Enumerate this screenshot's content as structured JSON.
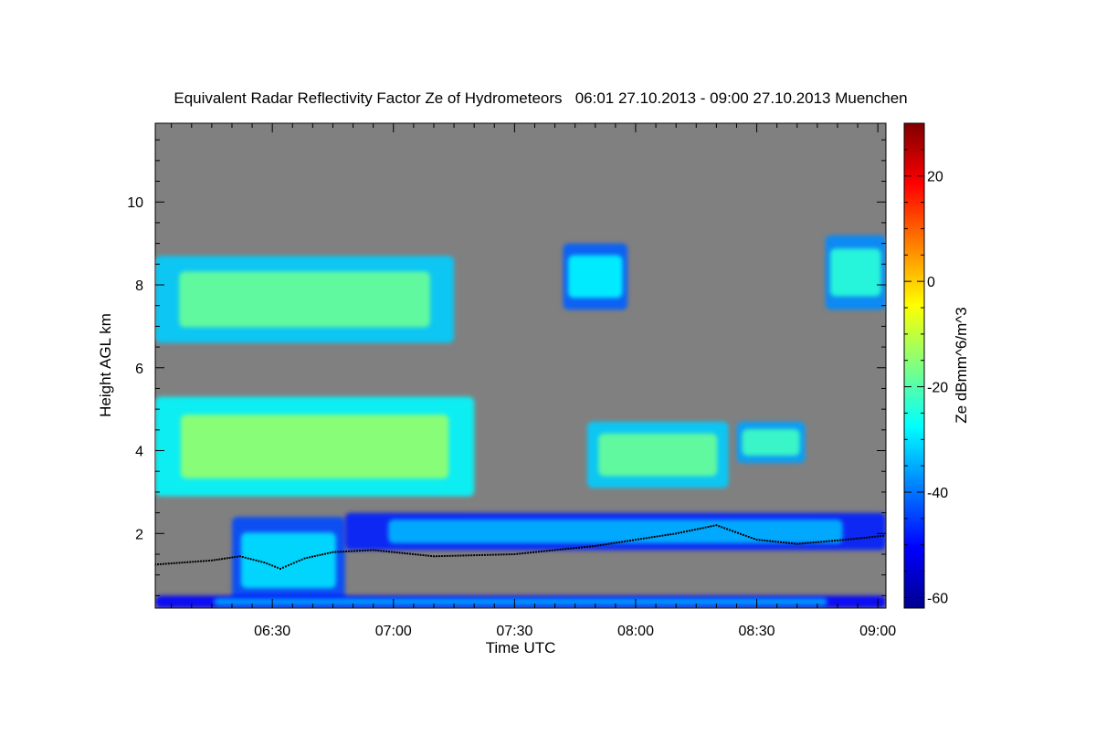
{
  "chart_data": {
    "type": "heatmap",
    "title": "Equivalent Radar Reflectivity Factor Ze of Hydrometeors   06:01 27.10.2013 - 09:00 27.10.2013 Muenchen",
    "xlabel": "Time UTC",
    "ylabel": "Height AGL km",
    "colorbar_label": "Ze dBmm^6/m^3",
    "x_ticks": [
      "06:30",
      "07:00",
      "07:30",
      "08:00",
      "08:30",
      "09:00"
    ],
    "x_tick_minutes": [
      30,
      60,
      90,
      120,
      150,
      180
    ],
    "xlim_minutes": [
      1,
      182
    ],
    "y_ticks": [
      2,
      4,
      6,
      8,
      10
    ],
    "ylim": [
      0.2,
      11.9
    ],
    "colorbar_ticks": [
      -60,
      -40,
      -20,
      0,
      20
    ],
    "colorbar_range": [
      -62,
      30
    ],
    "background_color": "#808080",
    "cloud_regions": [
      {
        "name": "upper-cloud-1",
        "t_start": 1,
        "t_end": 75,
        "h_bottom": 6.6,
        "h_top": 8.7,
        "ze": -18
      },
      {
        "name": "upper-cloud-2",
        "t_start": 102,
        "t_end": 118,
        "h_bottom": 7.4,
        "h_top": 9.0,
        "ze": -28
      },
      {
        "name": "upper-cloud-3",
        "t_start": 167,
        "t_end": 182,
        "h_bottom": 7.4,
        "h_top": 9.2,
        "ze": -24
      },
      {
        "name": "mid-cloud-1",
        "t_start": 1,
        "t_end": 80,
        "h_bottom": 2.9,
        "h_top": 5.3,
        "ze": -14
      },
      {
        "name": "mid-cloud-2",
        "t_start": 108,
        "t_end": 143,
        "h_bottom": 3.1,
        "h_top": 4.7,
        "ze": -18
      },
      {
        "name": "mid-cloud-3",
        "t_start": 145,
        "t_end": 162,
        "h_bottom": 3.7,
        "h_top": 4.7,
        "ze": -22
      },
      {
        "name": "low-cloud-1",
        "t_start": 20,
        "t_end": 48,
        "h_bottom": 0.3,
        "h_top": 2.4,
        "ze": -30
      },
      {
        "name": "low-cloud-2",
        "t_start": 48,
        "t_end": 182,
        "h_bottom": 1.6,
        "h_top": 2.5,
        "ze": -34
      },
      {
        "name": "near-ground-echo",
        "t_start": 1,
        "t_end": 182,
        "h_bottom": 0.2,
        "h_top": 0.5,
        "ze": -36
      }
    ],
    "cloud_base_line": [
      {
        "t": 1,
        "h": 1.25
      },
      {
        "t": 15,
        "h": 1.35
      },
      {
        "t": 22,
        "h": 1.45
      },
      {
        "t": 28,
        "h": 1.3
      },
      {
        "t": 32,
        "h": 1.15
      },
      {
        "t": 38,
        "h": 1.4
      },
      {
        "t": 45,
        "h": 1.55
      },
      {
        "t": 55,
        "h": 1.6
      },
      {
        "t": 70,
        "h": 1.45
      },
      {
        "t": 90,
        "h": 1.5
      },
      {
        "t": 110,
        "h": 1.7
      },
      {
        "t": 130,
        "h": 2.0
      },
      {
        "t": 140,
        "h": 2.2
      },
      {
        "t": 150,
        "h": 1.85
      },
      {
        "t": 160,
        "h": 1.75
      },
      {
        "t": 172,
        "h": 1.85
      },
      {
        "t": 182,
        "h": 1.95
      }
    ]
  }
}
